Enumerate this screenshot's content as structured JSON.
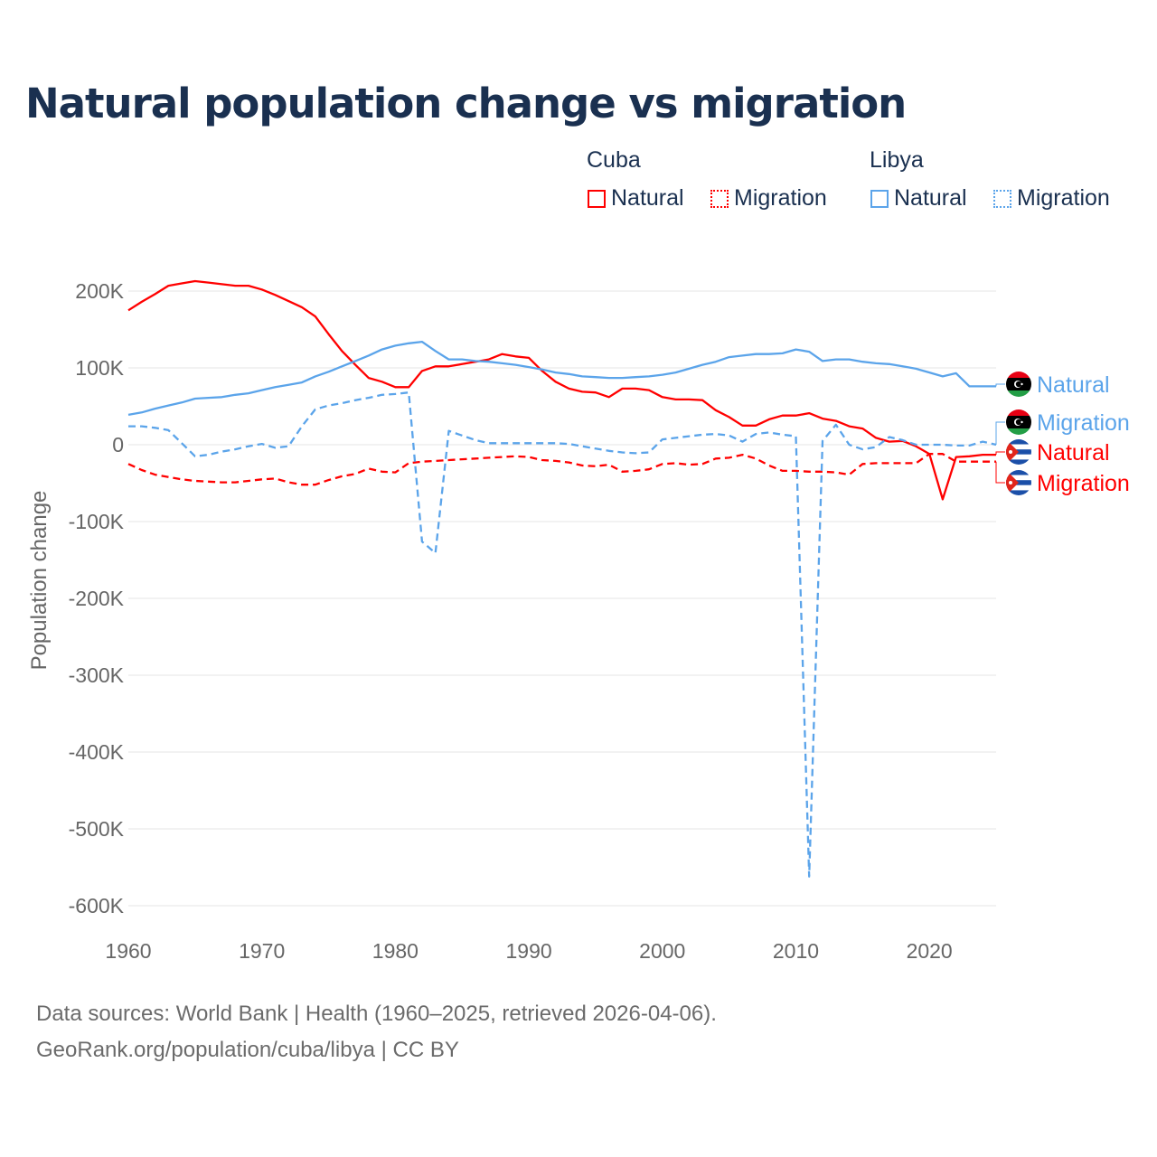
{
  "title": "Natural population change vs migration",
  "legend": {
    "groups": [
      {
        "name": "Cuba",
        "items": [
          {
            "label": "Natural",
            "style": "solid"
          },
          {
            "label": "Migration",
            "style": "dotted"
          }
        ],
        "color": "#ff0000"
      },
      {
        "name": "Libya",
        "items": [
          {
            "label": "Natural",
            "style": "solid"
          },
          {
            "label": "Migration",
            "style": "dotted"
          }
        ],
        "color": "#5ba4ea"
      }
    ]
  },
  "source": {
    "line1": "Data sources: World Bank | Health (1960–2025, retrieved 2026-04-06).",
    "line2": "GeoRank.org/population/cuba/libya | CC BY"
  },
  "chart_data": {
    "type": "line",
    "title": "Natural population change vs migration",
    "xlabel": "",
    "ylabel": "Population change",
    "xlim": [
      1960,
      2025
    ],
    "ylim": [
      -600000,
      200000
    ],
    "xticks": [
      "1960",
      "1970",
      "1980",
      "1990",
      "2000",
      "2010",
      "2020"
    ],
    "yticks": [
      "200K",
      "100K",
      "0",
      "-100K",
      "-200K",
      "-300K",
      "-400K",
      "-500K",
      "-600K"
    ],
    "grid": true,
    "x_start": 1960,
    "series": [
      {
        "name": "Natural",
        "country": "Cuba",
        "color": "#ff0000",
        "dash": false,
        "end_label": "Natural",
        "values": [
          175000,
          186000,
          196000,
          207000,
          210000,
          213000,
          211000,
          209000,
          207000,
          207000,
          202000,
          195000,
          187000,
          179000,
          167000,
          144000,
          122000,
          104000,
          87000,
          82000,
          75000,
          75000,
          96000,
          102000,
          102000,
          105000,
          108000,
          111000,
          118000,
          115000,
          113000,
          96000,
          82000,
          73000,
          69000,
          68000,
          62000,
          73000,
          73000,
          71000,
          62000,
          59000,
          59000,
          58000,
          45000,
          36000,
          25000,
          25000,
          33000,
          38000,
          38000,
          41000,
          34000,
          31000,
          24000,
          21000,
          9000,
          4000,
          5000,
          -2000,
          -12000,
          -71000,
          -16000,
          -15000,
          -13000,
          -13000
        ]
      },
      {
        "name": "Migration",
        "country": "Cuba",
        "color": "#ff0000",
        "dash": true,
        "end_label": "Migration",
        "values": [
          -25000,
          -33000,
          -39000,
          -42000,
          -45000,
          -47000,
          -48000,
          -49000,
          -49000,
          -47000,
          -45000,
          -44000,
          -49000,
          -52000,
          -52000,
          -46000,
          -41000,
          -38000,
          -31000,
          -35000,
          -36000,
          -24000,
          -22000,
          -21000,
          -20000,
          -19000,
          -18000,
          -17000,
          -16000,
          -15000,
          -16000,
          -20000,
          -21000,
          -23000,
          -27000,
          -28000,
          -26000,
          -35000,
          -34000,
          -32000,
          -25000,
          -24000,
          -26000,
          -25000,
          -18000,
          -17000,
          -13000,
          -18000,
          -27000,
          -34000,
          -34000,
          -35000,
          -35000,
          -36000,
          -39000,
          -25000,
          -24000,
          -24000,
          -24000,
          -24000,
          -12000,
          -12000,
          -22000,
          -22000,
          -22000,
          -22000
        ]
      },
      {
        "name": "Natural",
        "country": "Libya",
        "color": "#5ba4ea",
        "dash": false,
        "end_label": "Natural",
        "values": [
          39000,
          42000,
          47000,
          51000,
          55000,
          60000,
          61000,
          62000,
          65000,
          67000,
          71000,
          75000,
          78000,
          81000,
          89000,
          95000,
          102000,
          109000,
          116000,
          124000,
          129000,
          132000,
          134000,
          122000,
          111000,
          111000,
          109000,
          108000,
          106000,
          104000,
          101000,
          98000,
          94000,
          92000,
          89000,
          88000,
          87000,
          87000,
          88000,
          89000,
          91000,
          94000,
          99000,
          104000,
          108000,
          114000,
          116000,
          118000,
          118000,
          119000,
          124000,
          121000,
          109000,
          111000,
          111000,
          108000,
          106000,
          105000,
          102000,
          99000,
          94000,
          89000,
          93000,
          76000,
          76000,
          76000
        ]
      },
      {
        "name": "Migration",
        "country": "Libya",
        "color": "#5ba4ea",
        "dash": true,
        "end_label": "Migration",
        "values": [
          24000,
          24000,
          22000,
          19000,
          2000,
          -15000,
          -13000,
          -9000,
          -6000,
          -2000,
          1000,
          -4000,
          -2000,
          24000,
          46000,
          51000,
          54000,
          58000,
          61000,
          65000,
          66000,
          68000,
          -126000,
          -141000,
          18000,
          12000,
          6000,
          2000,
          2000,
          2000,
          2000,
          2000,
          2000,
          1000,
          -2000,
          -5000,
          -8000,
          -10000,
          -11000,
          -10000,
          7000,
          9000,
          11000,
          13000,
          14000,
          12000,
          4000,
          14000,
          16000,
          13000,
          11000,
          -562000,
          5000,
          26000,
          0,
          -6000,
          -3000,
          10000,
          6000,
          0,
          0,
          0,
          -1000,
          -1000,
          4000,
          0
        ]
      }
    ]
  }
}
